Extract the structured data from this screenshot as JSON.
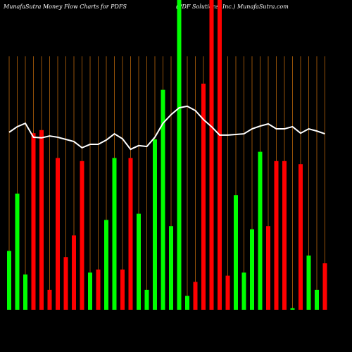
{
  "chart_data": {
    "type": "bar",
    "title": "MunafaSutra  Money Flow  Charts for PDFS",
    "subtitle": "(PDF Solutions, Inc.) MunafaSutra.com",
    "categories": [
      null,
      null,
      null,
      null,
      null,
      null,
      null,
      null,
      null,
      null,
      null,
      null,
      null,
      null,
      null,
      null,
      null,
      null,
      null,
      null,
      null,
      null,
      null,
      null,
      null,
      null,
      null,
      null,
      null,
      null,
      null,
      null,
      null,
      null,
      null,
      null,
      null,
      null,
      null,
      null
    ],
    "ylim": [
      0,
      100
    ],
    "grid_color": "#b8650a",
    "series": [
      {
        "type": "bar",
        "values": [
          19,
          37.5,
          11.4,
          57,
          58,
          6.4,
          49,
          17,
          24,
          48,
          12,
          13,
          29,
          49,
          13,
          49,
          31,
          6.4,
          55,
          71,
          27,
          100,
          4.5,
          9,
          73,
          100,
          100,
          11,
          37,
          12,
          26,
          51,
          27,
          48,
          48,
          0.5,
          47,
          17.5,
          6.4,
          15
        ],
        "colors": [
          "#00ff00",
          "#00ff00",
          "#00ff00",
          "#ff0000",
          "#ff0000",
          "#ff0000",
          "#ff0000",
          "#ff0000",
          "#ff0000",
          "#ff0000",
          "#00ff00",
          "#ff0000",
          "#00ff00",
          "#00ff00",
          "#ff0000",
          "#ff0000",
          "#00ff00",
          "#00ff00",
          "#00ff00",
          "#00ff00",
          "#00ff00",
          "#00ff00",
          "#00ff00",
          "#ff0000",
          "#ff0000",
          "#ff0000",
          "#ff0000",
          "#ff0000",
          "#00ff00",
          "#00ff00",
          "#00ff00",
          "#00ff00",
          "#ff0000",
          "#ff0000",
          "#ff0000",
          "#00ff00",
          "#ff0000",
          "#00ff00",
          "#00ff00",
          "#ff0000"
        ]
      },
      {
        "type": "line",
        "color": "#ffffff",
        "values": [
          57.3,
          59.1,
          60.2,
          55.7,
          55.5,
          56.1,
          55.7,
          55,
          54.3,
          52.3,
          53.4,
          53.4,
          54.8,
          56.8,
          55.2,
          51.8,
          53,
          52.7,
          55.7,
          60.2,
          63,
          65.2,
          65.7,
          64.3,
          61.4,
          59.1,
          56.4,
          56.4,
          56.6,
          56.8,
          58.4,
          59.3,
          60,
          58.4,
          58.4,
          59.1,
          57,
          58.4,
          57.7,
          56.8
        ]
      }
    ]
  }
}
